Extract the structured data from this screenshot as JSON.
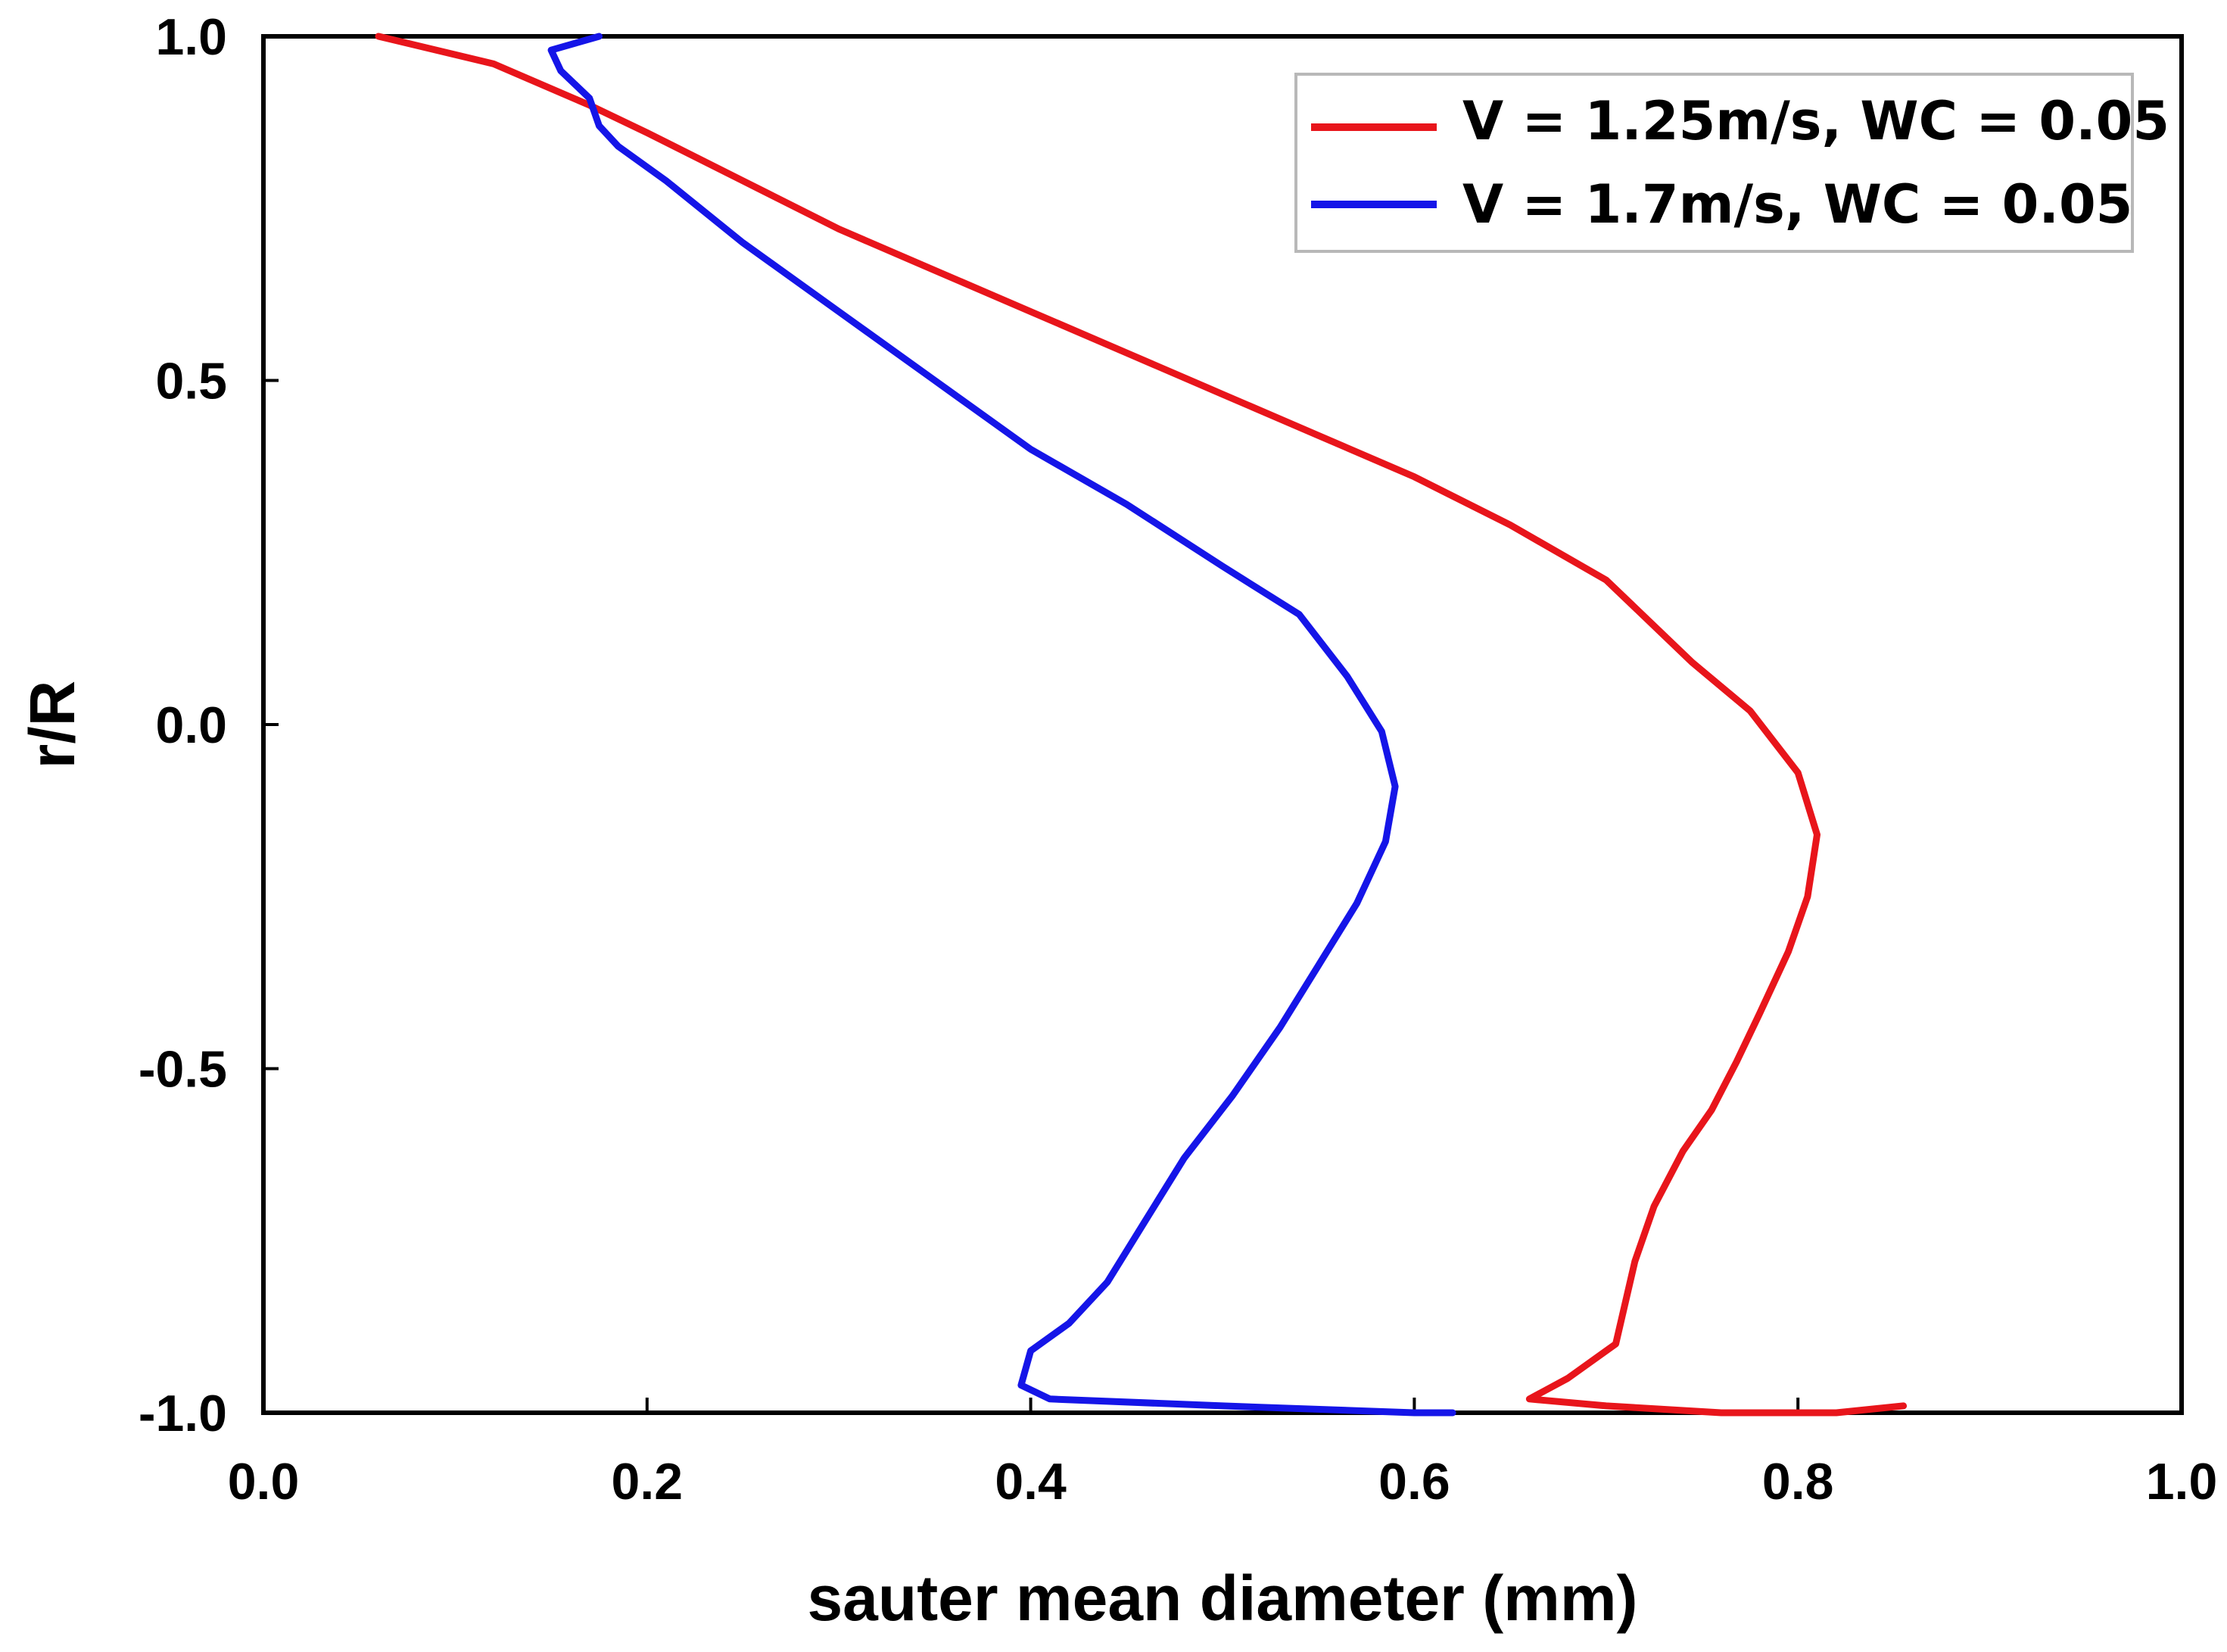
{
  "chart_data": {
    "type": "line",
    "title": "",
    "xlabel": "sauter mean diameter (mm)",
    "ylabel": "r/R",
    "xlim": [
      0.0,
      1.0
    ],
    "ylim": [
      -1.0,
      1.0
    ],
    "xticks": [
      "0.0",
      "0.2",
      "0.4",
      "0.6",
      "0.8",
      "1.0"
    ],
    "yticks": [
      "1.0",
      "0.5",
      "0.0",
      "-0.5",
      "-1.0"
    ],
    "grid": false,
    "legend_position": "top-right",
    "series": [
      {
        "name": "V = 1.25m/s, WC = 0.05",
        "color": "#e8151b",
        "x": [
          0.06,
          0.12,
          0.17,
          0.2,
          0.25,
          0.3,
          0.35,
          0.4,
          0.45,
          0.5,
          0.55,
          0.6,
          0.65,
          0.7,
          0.745,
          0.775,
          0.8,
          0.81,
          0.805,
          0.795,
          0.78,
          0.768,
          0.755,
          0.74,
          0.725,
          0.715,
          0.705,
          0.68,
          0.66,
          0.7,
          0.76,
          0.82,
          0.855
        ],
        "y": [
          1.0,
          0.96,
          0.9,
          0.86,
          0.79,
          0.72,
          0.66,
          0.6,
          0.54,
          0.48,
          0.42,
          0.36,
          0.29,
          0.21,
          0.09,
          0.02,
          -0.07,
          -0.16,
          -0.25,
          -0.33,
          -0.42,
          -0.49,
          -0.56,
          -0.62,
          -0.7,
          -0.78,
          -0.9,
          -0.95,
          -0.98,
          -0.99,
          -1.0,
          -1.0,
          -0.99
        ],
        "lw": 9
      },
      {
        "name": "V = 1.7m/s, WC = 0.05",
        "color": "#1515e8",
        "x": [
          0.175,
          0.15,
          0.155,
          0.17,
          0.175,
          0.185,
          0.21,
          0.25,
          0.3,
          0.35,
          0.4,
          0.45,
          0.5,
          0.54,
          0.565,
          0.583,
          0.59,
          0.585,
          0.57,
          0.55,
          0.53,
          0.505,
          0.48,
          0.46,
          0.44,
          0.42,
          0.4,
          0.395,
          0.41,
          0.5,
          0.6,
          0.62
        ],
        "y": [
          1.0,
          0.98,
          0.95,
          0.91,
          0.87,
          0.84,
          0.79,
          0.7,
          0.6,
          0.5,
          0.4,
          0.32,
          0.23,
          0.16,
          0.07,
          -0.01,
          -0.09,
          -0.17,
          -0.26,
          -0.35,
          -0.44,
          -0.54,
          -0.63,
          -0.72,
          -0.81,
          -0.87,
          -0.91,
          -0.96,
          -0.98,
          -0.99,
          -1.0,
          -1.0
        ],
        "lw": 9
      }
    ]
  }
}
